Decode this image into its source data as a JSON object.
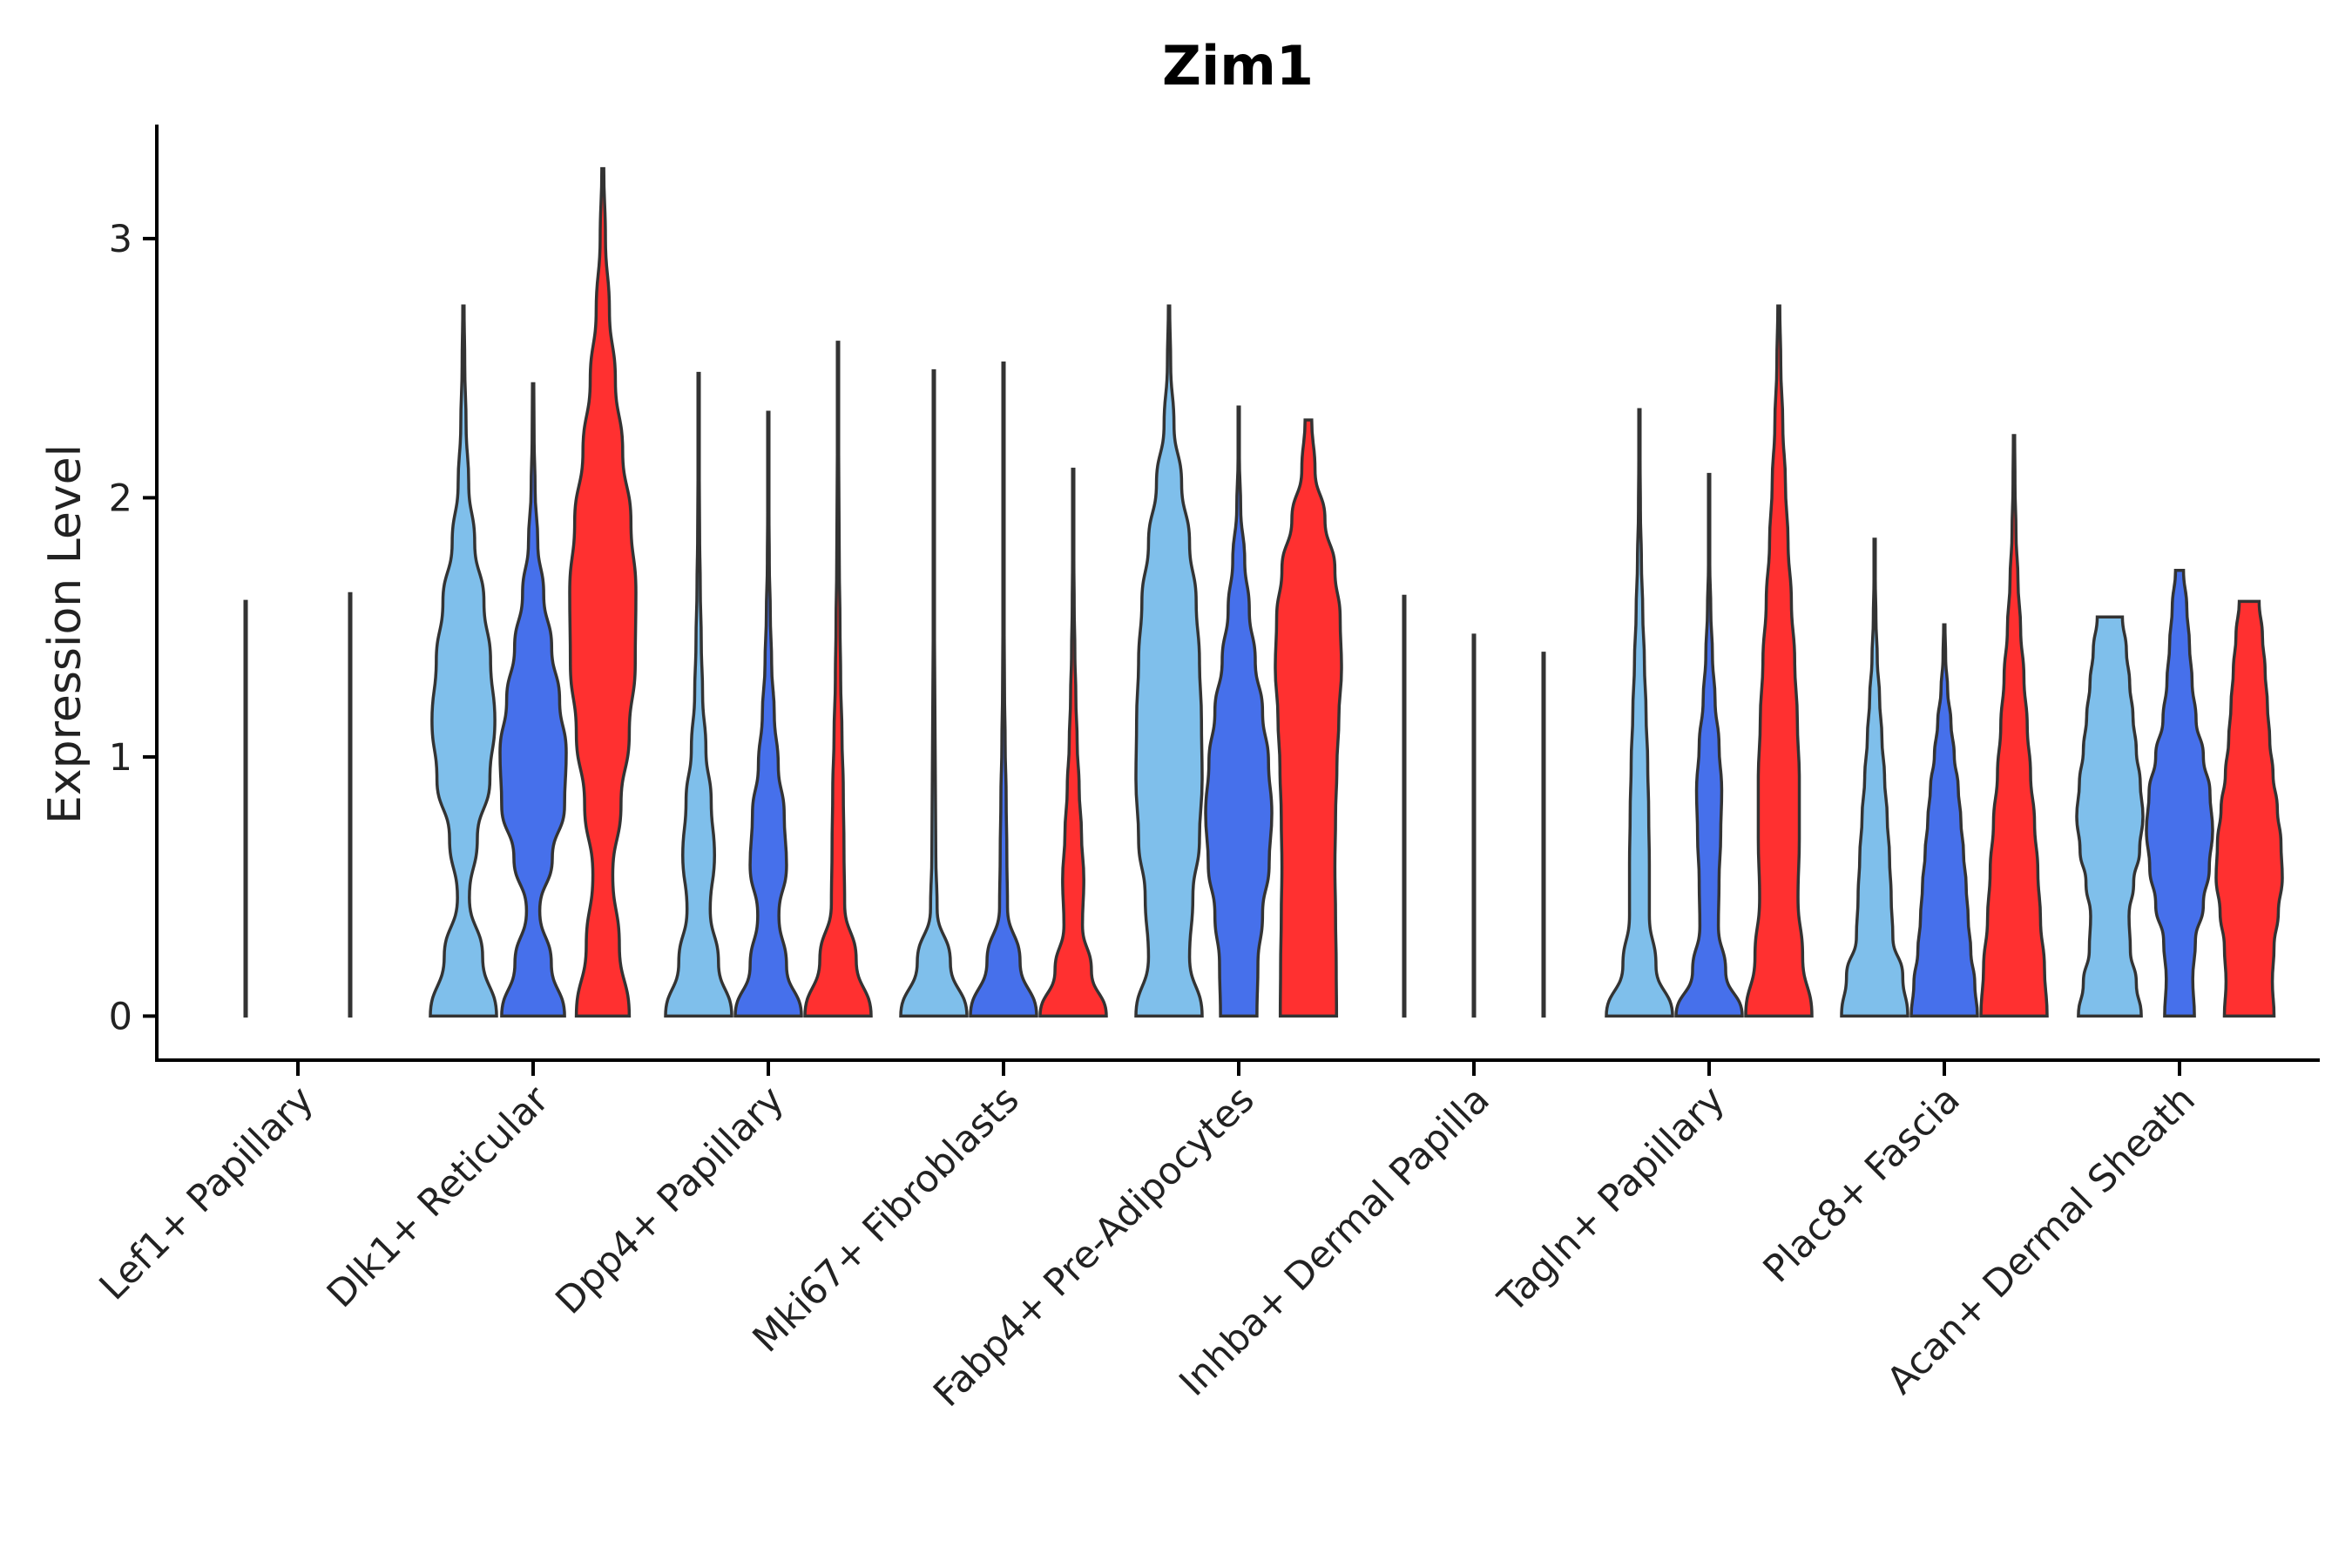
{
  "chart_data": {
    "type": "violin",
    "title": "Zim1",
    "xlabel": "",
    "ylabel": "Expression Level",
    "ylim": [
      -0.17,
      3.44
    ],
    "yticks": [
      0,
      1,
      2,
      3
    ],
    "grid": false,
    "legend": "none",
    "series_colors": [
      "#7fbfeb",
      "#4670eb",
      "#ff3030"
    ],
    "categories": [
      {
        "label": "Lef1+ Papillary",
        "violins": [
          {
            "series": 1,
            "max": 1.6,
            "widths": [
              0.02,
              0.02,
              0.02,
              0.02,
              0.02,
              0.02,
              0.02,
              0.02,
              0.02,
              0.02,
              0.02,
              0.02,
              0.02
            ]
          },
          {
            "series": 2,
            "max": 1.63,
            "widths": [
              0.02,
              0.02,
              0.02,
              0.02,
              0.02,
              0.02,
              0.02,
              0.02,
              0.02,
              0.02,
              0.02,
              0.02,
              0.02
            ]
          }
        ]
      },
      {
        "label": "Dlk1+ Reticular",
        "violins": [
          {
            "series": 1,
            "max": 2.74,
            "widths": [
              1.0,
              0.58,
              0.18,
              0.42,
              0.8,
              0.95,
              0.82,
              0.62,
              0.34,
              0.16,
              0.08,
              0.04,
              0.02
            ]
          },
          {
            "series": 2,
            "max": 2.44,
            "widths": [
              0.95,
              0.55,
              0.2,
              0.58,
              0.95,
              1.0,
              0.8,
              0.56,
              0.32,
              0.14,
              0.06,
              0.03,
              0.02
            ]
          },
          {
            "series": 3,
            "max": 3.27,
            "widths": [
              0.8,
              0.5,
              0.3,
              0.55,
              0.8,
              0.98,
              1.0,
              0.85,
              0.6,
              0.38,
              0.2,
              0.08,
              0.03
            ]
          }
        ]
      },
      {
        "label": "Dpp4+ Papillary",
        "violins": [
          {
            "series": 1,
            "max": 2.48,
            "widths": [
              1.0,
              0.6,
              0.35,
              0.48,
              0.38,
              0.22,
              0.12,
              0.08,
              0.05,
              0.03,
              0.02,
              0.02,
              0.02
            ]
          },
          {
            "series": 2,
            "max": 2.33,
            "widths": [
              1.0,
              0.55,
              0.32,
              0.55,
              0.48,
              0.3,
              0.18,
              0.1,
              0.06,
              0.03,
              0.02,
              0.02,
              0.02
            ]
          },
          {
            "series": 3,
            "max": 2.6,
            "widths": [
              1.0,
              0.55,
              0.2,
              0.18,
              0.16,
              0.12,
              0.08,
              0.06,
              0.04,
              0.03,
              0.02,
              0.02,
              0.02
            ]
          }
        ]
      },
      {
        "label": "Mki67+ Fibroblasts",
        "violins": [
          {
            "series": 1,
            "max": 2.49,
            "widths": [
              1.0,
              0.5,
              0.1,
              0.06,
              0.05,
              0.04,
              0.03,
              0.02,
              0.02,
              0.02,
              0.02,
              0.02,
              0.02
            ]
          },
          {
            "series": 2,
            "max": 2.52,
            "widths": [
              1.0,
              0.5,
              0.12,
              0.1,
              0.08,
              0.05,
              0.03,
              0.02,
              0.02,
              0.02,
              0.02,
              0.02,
              0.02
            ]
          },
          {
            "series": 3,
            "max": 2.11,
            "widths": [
              1.0,
              0.55,
              0.28,
              0.32,
              0.25,
              0.18,
              0.12,
              0.08,
              0.05,
              0.03,
              0.02,
              0.02,
              0.02
            ]
          }
        ]
      },
      {
        "label": "Fabp4+ Pre-Adipocytes",
        "violins": [
          {
            "series": 1,
            "max": 2.74,
            "widths": [
              1.0,
              0.62,
              0.72,
              0.92,
              1.0,
              0.98,
              0.92,
              0.82,
              0.62,
              0.38,
              0.15,
              0.05,
              0.02
            ]
          },
          {
            "series": 2,
            "max": 2.35,
            "widths": [
              0.55,
              0.58,
              0.72,
              0.92,
              1.0,
              0.9,
              0.72,
              0.5,
              0.32,
              0.18,
              0.06,
              0.02,
              0.02
            ]
          },
          {
            "series": 3,
            "max": 2.3,
            "widths": [
              0.85,
              0.84,
              0.82,
              0.8,
              0.82,
              0.86,
              0.92,
              1.0,
              0.96,
              0.8,
              0.5,
              0.2,
              0.1
            ]
          }
        ]
      },
      {
        "label": "Inhba+ Dermal Papilla",
        "violins": [
          {
            "series": 1,
            "max": 1.62,
            "widths": [
              0.02,
              0.02,
              0.02,
              0.02,
              0.02,
              0.02,
              0.02,
              0.02,
              0.02,
              0.02,
              0.02,
              0.02,
              0.02
            ]
          },
          {
            "series": 2,
            "max": 1.47,
            "widths": [
              0.02,
              0.02,
              0.02,
              0.02,
              0.02,
              0.02,
              0.02,
              0.02,
              0.02,
              0.02,
              0.02,
              0.02,
              0.02
            ]
          },
          {
            "series": 3,
            "max": 1.4,
            "widths": [
              0.02,
              0.02,
              0.02,
              0.02,
              0.02,
              0.02,
              0.02,
              0.02,
              0.02,
              0.02,
              0.02,
              0.02,
              0.02
            ]
          }
        ]
      },
      {
        "label": "Tagln+ Papillary",
        "violins": [
          {
            "series": 1,
            "max": 2.34,
            "widths": [
              1.0,
              0.5,
              0.3,
              0.3,
              0.28,
              0.25,
              0.2,
              0.15,
              0.1,
              0.06,
              0.03,
              0.02,
              0.02
            ]
          },
          {
            "series": 2,
            "max": 2.09,
            "widths": [
              1.0,
              0.5,
              0.28,
              0.3,
              0.35,
              0.38,
              0.3,
              0.18,
              0.1,
              0.05,
              0.02,
              0.02,
              0.02
            ]
          },
          {
            "series": 3,
            "max": 2.74,
            "widths": [
              1.0,
              0.72,
              0.58,
              0.62,
              0.62,
              0.56,
              0.48,
              0.38,
              0.28,
              0.2,
              0.12,
              0.06,
              0.03
            ]
          }
        ]
      },
      {
        "label": "Plac8+ Fascia",
        "violins": [
          {
            "series": 1,
            "max": 1.84,
            "widths": [
              1.0,
              0.85,
              0.55,
              0.5,
              0.45,
              0.38,
              0.3,
              0.22,
              0.15,
              0.08,
              0.04,
              0.02,
              0.02
            ]
          },
          {
            "series": 2,
            "max": 1.51,
            "widths": [
              1.0,
              0.92,
              0.8,
              0.72,
              0.66,
              0.58,
              0.5,
              0.42,
              0.3,
              0.2,
              0.1,
              0.04,
              0.02
            ]
          },
          {
            "series": 3,
            "max": 2.24,
            "widths": [
              1.0,
              0.92,
              0.8,
              0.72,
              0.62,
              0.5,
              0.4,
              0.3,
              0.2,
              0.12,
              0.06,
              0.03,
              0.02
            ]
          }
        ]
      },
      {
        "label": "Acan+ Dermal Sheath",
        "violins": [
          {
            "series": 1,
            "max": 1.54,
            "widths": [
              0.95,
              0.8,
              0.62,
              0.58,
              0.72,
              0.9,
              1.0,
              0.92,
              0.8,
              0.7,
              0.6,
              0.5,
              0.38
            ]
          },
          {
            "series": 2,
            "max": 1.72,
            "widths": [
              0.45,
              0.4,
              0.48,
              0.72,
              0.9,
              1.0,
              0.92,
              0.72,
              0.5,
              0.38,
              0.3,
              0.22,
              0.12
            ]
          },
          {
            "series": 3,
            "max": 1.6,
            "widths": [
              0.75,
              0.7,
              0.75,
              0.88,
              1.0,
              0.96,
              0.85,
              0.72,
              0.62,
              0.55,
              0.48,
              0.4,
              0.3
            ]
          }
        ]
      }
    ]
  }
}
